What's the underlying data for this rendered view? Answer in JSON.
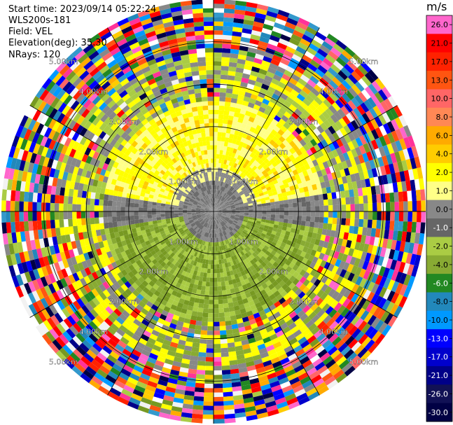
{
  "header": {
    "start_time": "Start time: 2023/09/14 05:22:24",
    "instrument": "WLS200s-181",
    "field": "Field: VEL",
    "elevation": "Elevation(deg): 35.30",
    "nrays": "NRays: 120"
  },
  "colorbar": {
    "unit": "m/s",
    "colors": [
      "#f2f2f2",
      "#ff66cc",
      "#ff3399",
      "#ff0000",
      "#ff2200",
      "#ff5511",
      "#ff8855",
      "#ff6666",
      "#ffaa00",
      "#ffcc00",
      "#ffff00",
      "#ffff88",
      "#ff77aa",
      "#888888",
      "#666666",
      "#aacc44",
      "#88aa33",
      "#779922",
      "#228822",
      "#2288bb",
      "#3399cc",
      "#0099ff",
      "#0000ff",
      "#0000cc",
      "#000088",
      "#000066",
      "#111155",
      "#000044"
    ],
    "ticks": [
      "26.0",
      "21.0",
      "17.0",
      "13.0",
      "10.0",
      "8.0",
      "6.0",
      "4.0",
      "2.0",
      "1.0",
      "0.0",
      "-1.0",
      "-2.0",
      "-4.0",
      "-6.0",
      "-8.0",
      "-10.0",
      "-13.0",
      "-17.0",
      "-21.0",
      "-26.0",
      "-30.0"
    ],
    "tick_colors": [
      "#ff66cc",
      "#ff0000",
      "#ff2200",
      "#ff5511",
      "#ff6666",
      "#ff8855",
      "#ffaa00",
      "#ffcc00",
      "#ffff00",
      "#ffff88",
      "#888888",
      "#666666",
      "#aacc44",
      "#88aa33",
      "#228822",
      "#2288bb",
      "#0099ff",
      "#0000ff",
      "#0000cc",
      "#000088",
      "#111155",
      "#000044"
    ]
  },
  "chart_data": {
    "type": "heatmap",
    "projection": "polar-ppi",
    "field": "VEL",
    "nrays": 120,
    "range_rings_km": [
      1.0,
      2.0,
      3.0,
      4.0
    ],
    "ring_labels": [
      "1.00km",
      "2.00km",
      "3.00km",
      "4.00km",
      "5.00km"
    ],
    "max_range_km": 5.0,
    "spokes_deg": [
      0,
      30,
      60,
      90,
      120,
      150,
      180,
      210,
      240,
      270,
      300,
      330
    ],
    "grid": true,
    "vmin": -30.0,
    "vmax": 30.0
  }
}
